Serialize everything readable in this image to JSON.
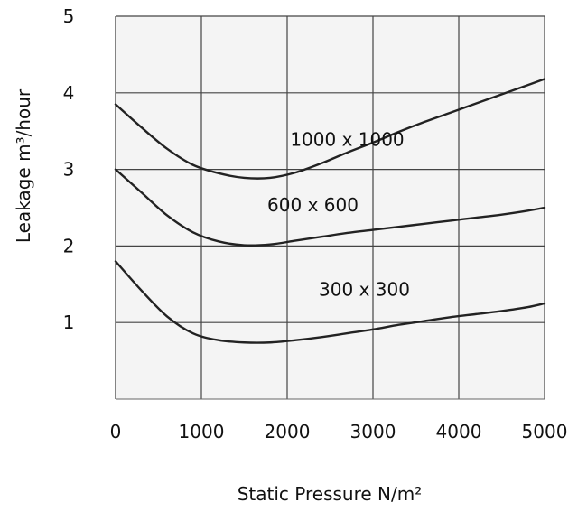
{
  "chart_data": {
    "type": "line",
    "xlabel": "Static Pressure N/m²",
    "ylabel": "Leakage m³/hour",
    "xlim": [
      0,
      5000
    ],
    "ylim": [
      0,
      5
    ],
    "x_ticks": [
      "0",
      "1000",
      "2000",
      "3000",
      "4000",
      "5000"
    ],
    "y_ticks": [
      "1",
      "2",
      "3",
      "4",
      "5"
    ],
    "grid": true,
    "background": "#f4f4f4",
    "line_color": "#222222",
    "series": [
      {
        "name": "1000 x 1000",
        "x": [
          0,
          300,
          600,
          900,
          1200,
          1500,
          1800,
          2100,
          2400,
          2700,
          3000,
          3300,
          3600,
          3900,
          4200,
          4500,
          4800,
          5000
        ],
        "y": [
          3.85,
          3.55,
          3.27,
          3.06,
          2.95,
          2.89,
          2.89,
          2.96,
          3.08,
          3.22,
          3.35,
          3.49,
          3.62,
          3.74,
          3.86,
          3.98,
          4.1,
          4.18
        ]
      },
      {
        "name": "600 x 600",
        "x": [
          0,
          300,
          600,
          900,
          1200,
          1500,
          1800,
          2100,
          2400,
          2700,
          3000,
          3300,
          3600,
          3900,
          4200,
          4500,
          4800,
          5000
        ],
        "y": [
          3.0,
          2.7,
          2.4,
          2.18,
          2.06,
          2.01,
          2.02,
          2.07,
          2.12,
          2.17,
          2.21,
          2.25,
          2.29,
          2.33,
          2.37,
          2.41,
          2.46,
          2.5
        ]
      },
      {
        "name": "300 x 300",
        "x": [
          0,
          300,
          600,
          900,
          1200,
          1500,
          1800,
          2100,
          2400,
          2700,
          3000,
          3300,
          3600,
          3900,
          4200,
          4500,
          4800,
          5000
        ],
        "y": [
          1.8,
          1.42,
          1.08,
          0.86,
          0.77,
          0.74,
          0.74,
          0.77,
          0.81,
          0.86,
          0.91,
          0.97,
          1.02,
          1.07,
          1.11,
          1.15,
          1.2,
          1.25
        ]
      }
    ]
  }
}
